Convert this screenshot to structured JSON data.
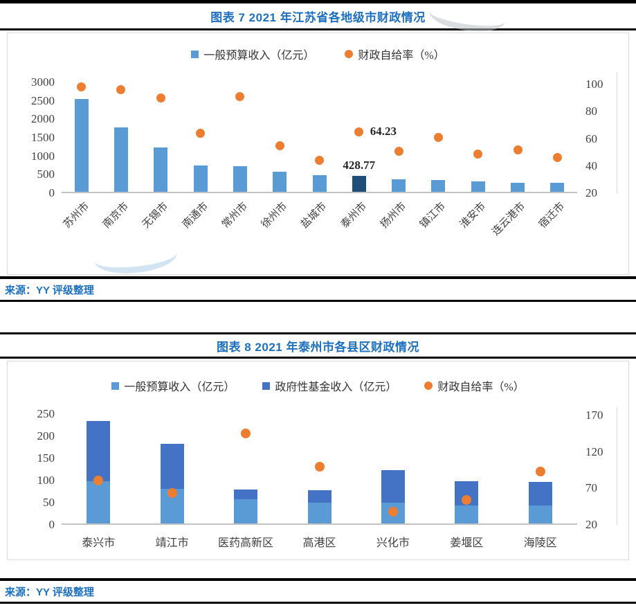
{
  "figure7": {
    "title": "图表 7 2021 年江苏省各地级市财政情况",
    "source": "来源：YY 评级整理"
  },
  "figure8": {
    "title": "图表 8 2021 年泰州市各县区财政情况",
    "source": "来源：YY 评级整理"
  },
  "colors": {
    "title_blue": "#1D6FC0",
    "bar_blue": "#5B9BD5",
    "highlight_navy": "#1F4E79",
    "stack_dark_blue": "#4472C4",
    "dot_orange": "#ED7D31"
  },
  "chart_data": [
    {
      "type": "bar+scatter",
      "title": "图表 7 2021 年江苏省各地级市财政情况",
      "categories": [
        "苏州市",
        "南京市",
        "无锡市",
        "南通市",
        "常州市",
        "徐州市",
        "盐城市",
        "泰州市",
        "扬州市",
        "镇江市",
        "淮安市",
        "连云港市",
        "宿迁市"
      ],
      "series": [
        {
          "name": "一般预算收入（亿元）",
          "type": "bar",
          "axis": "left",
          "color": "#5B9BD5",
          "values": [
            2510,
            1740,
            1200,
            715,
            695,
            540,
            450,
            428.77,
            340,
            320,
            285,
            250,
            240
          ]
        },
        {
          "name": "财政自给率（%）",
          "type": "scatter",
          "axis": "right",
          "color": "#ED7D31",
          "values": [
            97,
            95,
            89,
            63,
            90,
            54,
            43,
            64.23,
            50,
            60,
            48,
            51,
            45
          ]
        }
      ],
      "highlight": {
        "index": 7,
        "bar_color": "#1F4E79",
        "bar_label": "428.77",
        "point_label": "64.23"
      },
      "left_axis": {
        "ticks": [
          3000,
          2500,
          2000,
          1500,
          1000,
          500,
          0
        ],
        "min": 0,
        "max": 3000
      },
      "right_axis": {
        "ticks": [
          100,
          80,
          60,
          40,
          20
        ],
        "min": 20,
        "max": 100
      },
      "x_label_rotation": 45,
      "grid": false,
      "legend_position": "top"
    },
    {
      "type": "stacked-bar+scatter",
      "title": "图表 8 2021 年泰州市各县区财政情况",
      "categories": [
        "泰兴市",
        "靖江市",
        "医药高新区",
        "高港区",
        "兴化市",
        "姜堰区",
        "海陵区"
      ],
      "series": [
        {
          "name": "一般预算收入（亿元）",
          "type": "bar",
          "stack": true,
          "axis": "left",
          "color": "#5B9BD5",
          "values": [
            95,
            78,
            54,
            47,
            47,
            40,
            40
          ]
        },
        {
          "name": "政府性基金收入（亿元）",
          "type": "bar",
          "stack": true,
          "axis": "left",
          "color": "#4472C4",
          "values": [
            137,
            102,
            23,
            28,
            73,
            55,
            54
          ]
        },
        {
          "name": "财政自给率（%）",
          "type": "scatter",
          "axis": "right",
          "color": "#ED7D31",
          "values": [
            79,
            62,
            143,
            98,
            36,
            52,
            91
          ]
        }
      ],
      "highlight": null,
      "left_axis": {
        "ticks": [
          250,
          200,
          150,
          100,
          50,
          0
        ],
        "min": 0,
        "max": 250
      },
      "right_axis": {
        "ticks": [
          170,
          120,
          70,
          20
        ],
        "min": 20,
        "max": 170
      },
      "x_label_rotation": 0,
      "grid": false,
      "legend_position": "top"
    }
  ]
}
